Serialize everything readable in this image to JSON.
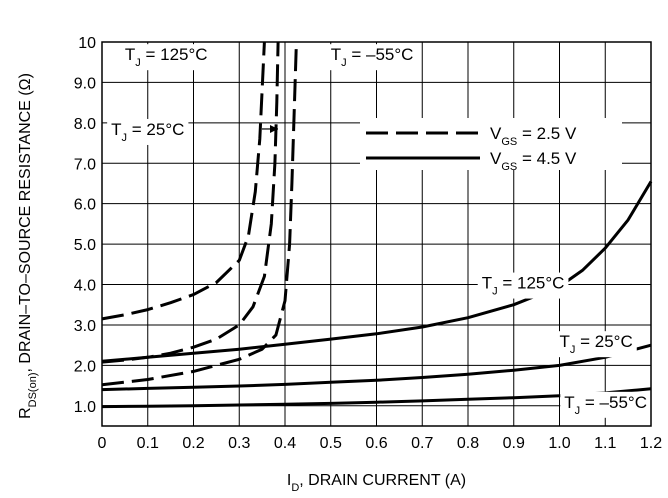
{
  "chart_data": {
    "type": "line",
    "xlabel": {
      "prefix": "I",
      "sub": "D",
      "rest": ", DRAIN CURRENT (A)"
    },
    "ylabel": {
      "prefix": "R",
      "sub": "DS(on)",
      "rest": ", DRAIN–TO–SOURCE RESISTANCE (Ω)"
    },
    "xlim": [
      0,
      1.2
    ],
    "ylim": [
      0.5,
      10
    ],
    "x_ticks": [
      "0",
      "0.1",
      "0.2",
      "0.3",
      "0.4",
      "0.5",
      "0.6",
      "0.7",
      "0.8",
      "0.9",
      "1.0",
      "1.1",
      "1.2"
    ],
    "y_ticks": [
      "1.0",
      "2.0",
      "3.0",
      "4.0",
      "5.0",
      "6.0",
      "7.0",
      "8.0",
      "9.0",
      "10"
    ],
    "y_tick_values": [
      1,
      2,
      3,
      4,
      5,
      6,
      7,
      8,
      9,
      10
    ],
    "grid": true,
    "legend": {
      "position": "upper-right",
      "entries": [
        {
          "text_prefix": "V",
          "text_sub": "GS",
          "text_rest": " = 2.5 V",
          "style": "dashed"
        },
        {
          "text_prefix": "V",
          "text_sub": "GS",
          "text_rest": " = 4.5 V",
          "style": "solid"
        }
      ]
    },
    "annotations": [
      {
        "text_prefix": "T",
        "text_sub": "J",
        "text_rest": " = 125°C",
        "x": 0.05,
        "y": 9.55
      },
      {
        "text_prefix": "T",
        "text_sub": "J",
        "text_rest": " = –55°C",
        "x": 0.5,
        "y": 9.55
      },
      {
        "text_prefix": "T",
        "text_sub": "J",
        "text_rest": " = 25°C",
        "x": 0.02,
        "y": 7.7
      },
      {
        "text_prefix": "T",
        "text_sub": "J",
        "text_rest": " = 125°C",
        "x": 0.83,
        "y": 3.9
      },
      {
        "text_prefix": "T",
        "text_sub": "J",
        "text_rest": " = 25°C",
        "x": 1.0,
        "y": 2.45
      },
      {
        "text_prefix": "T",
        "text_sub": "J",
        "text_rest": " = –55°C",
        "x": 1.17,
        "y": 0.95
      }
    ],
    "series": [
      {
        "style": "dashed",
        "x": [
          0,
          0.05,
          0.1,
          0.15,
          0.2,
          0.25,
          0.3,
          0.32,
          0.335,
          0.345,
          0.35,
          0.355
        ],
        "y": [
          3.15,
          3.25,
          3.38,
          3.55,
          3.75,
          4.05,
          4.6,
          5.2,
          6.3,
          7.6,
          8.8,
          10
        ]
      },
      {
        "style": "dashed",
        "x": [
          0,
          0.05,
          0.1,
          0.15,
          0.2,
          0.25,
          0.3,
          0.33,
          0.355,
          0.37,
          0.378,
          0.382,
          0.385
        ],
        "y": [
          2.08,
          2.13,
          2.2,
          2.3,
          2.45,
          2.65,
          3.0,
          3.45,
          4.2,
          5.5,
          7.0,
          8.5,
          10
        ]
      },
      {
        "style": "dashed",
        "x": [
          0,
          0.1,
          0.2,
          0.3,
          0.35,
          0.38,
          0.4,
          0.41,
          0.415,
          0.42,
          0.425
        ],
        "y": [
          1.52,
          1.65,
          1.85,
          2.15,
          2.4,
          2.75,
          3.6,
          5.0,
          6.5,
          8.2,
          10
        ]
      },
      {
        "style": "solid",
        "x": [
          0,
          0.1,
          0.2,
          0.3,
          0.4,
          0.5,
          0.6,
          0.7,
          0.8,
          0.9,
          1.0,
          1.05,
          1.1,
          1.15,
          1.2
        ],
        "y": [
          2.1,
          2.2,
          2.3,
          2.4,
          2.52,
          2.65,
          2.78,
          2.95,
          3.18,
          3.5,
          3.95,
          4.35,
          4.9,
          5.6,
          6.55
        ]
      },
      {
        "style": "solid",
        "x": [
          0,
          0.1,
          0.2,
          0.3,
          0.4,
          0.5,
          0.6,
          0.7,
          0.8,
          0.9,
          1.0,
          1.1,
          1.2
        ],
        "y": [
          1.4,
          1.43,
          1.46,
          1.49,
          1.53,
          1.58,
          1.63,
          1.7,
          1.78,
          1.88,
          2.0,
          2.2,
          2.5
        ]
      },
      {
        "style": "solid",
        "x": [
          0,
          0.1,
          0.2,
          0.3,
          0.4,
          0.5,
          0.6,
          0.7,
          0.8,
          0.9,
          1.0,
          1.1,
          1.2
        ],
        "y": [
          0.98,
          0.99,
          1.0,
          1.02,
          1.04,
          1.06,
          1.09,
          1.12,
          1.16,
          1.2,
          1.25,
          1.32,
          1.42
        ]
      }
    ]
  }
}
